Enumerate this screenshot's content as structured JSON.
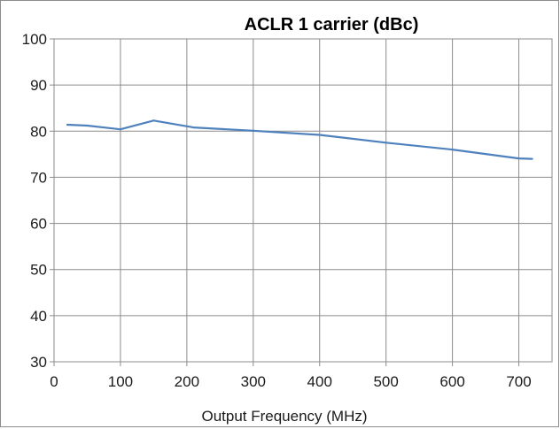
{
  "chart_data": {
    "type": "line",
    "title": "ACLR 1 carrier (dBc)",
    "xlabel": "Output Frequency (MHz)",
    "ylabel": "",
    "xlim": [
      0,
      750
    ],
    "ylim": [
      30,
      100
    ],
    "xticks": [
      0,
      100,
      200,
      300,
      400,
      500,
      600,
      700
    ],
    "yticks": [
      30,
      40,
      50,
      60,
      70,
      80,
      90,
      100
    ],
    "grid": true,
    "legend": "none",
    "series": [
      {
        "color": "#4f81bd",
        "x": [
          20,
          50,
          100,
          150,
          210,
          300,
          400,
          500,
          600,
          700,
          720
        ],
        "y": [
          81.4,
          81.2,
          80.4,
          82.3,
          80.8,
          80.1,
          79.2,
          77.5,
          76.0,
          74.1,
          74.0
        ]
      }
    ]
  }
}
